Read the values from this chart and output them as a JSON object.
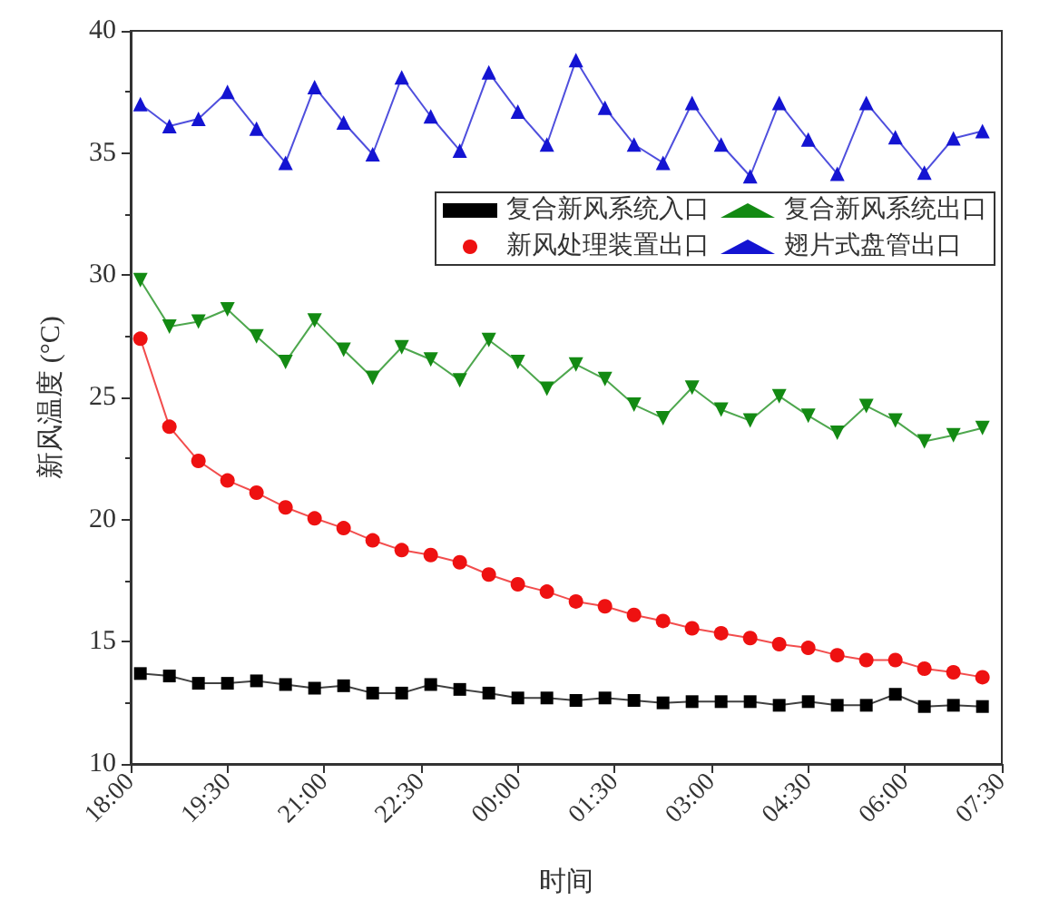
{
  "chart_data": {
    "type": "line",
    "xlabel": "时间",
    "ylabel": "新风温度 (°C)",
    "x": [
      "--01-01T18:09",
      "--01-01T18:36",
      "--01-01T19:03",
      "--01-01T19:30",
      "--01-01T19:57",
      "--01-01T20:24",
      "--01-01T20:51",
      "--01-01T21:18",
      "--01-01T21:45",
      "--01-01T22:12",
      "--01-01T22:39",
      "--01-01T23:06",
      "--01-01T23:33",
      "--01-02T00:00",
      "--01-02T00:27",
      "--01-02T00:54",
      "--01-02T01:21",
      "--01-02T01:48",
      "--01-02T02:15",
      "--01-02T02:42",
      "--01-02T03:09",
      "--01-02T03:36",
      "--01-02T04:03",
      "--01-02T04:30",
      "--01-02T04:57",
      "--01-02T05:24",
      "--01-02T05:51",
      "--01-02T06:18",
      "--01-02T06:45",
      "--01-02T07:12"
    ],
    "xlim": [
      "--01-01T18:00",
      "--01-02T07:30"
    ],
    "xticks": [
      {
        "value": "--01-01T18:00",
        "label": "18:00"
      },
      {
        "value": "--01-01T19:30",
        "label": "19:30"
      },
      {
        "value": "--01-01T21:00",
        "label": "21:00"
      },
      {
        "value": "--01-01T22:30",
        "label": "22:30"
      },
      {
        "value": "--01-02T00:00",
        "label": "00:00"
      },
      {
        "value": "--01-02T01:30",
        "label": "01:30"
      },
      {
        "value": "--01-02T03:00",
        "label": "03:00"
      },
      {
        "value": "--01-02T04:30",
        "label": "04:30"
      },
      {
        "value": "--01-02T06:00",
        "label": "06:00"
      },
      {
        "value": "--01-02T07:30",
        "label": "07:30"
      }
    ],
    "ylim": [
      10,
      40
    ],
    "yticks": [
      10,
      15,
      20,
      25,
      30,
      35,
      40
    ],
    "grid": false,
    "legend": "top right",
    "line_style": "solid",
    "series": [
      {
        "name": "复合新风系统入口",
        "color": "#000000",
        "marker": "square",
        "values": [
          13.7,
          13.6,
          13.3,
          13.3,
          13.4,
          13.25,
          13.1,
          13.2,
          12.9,
          12.9,
          13.25,
          13.05,
          12.9,
          12.7,
          12.7,
          12.6,
          12.7,
          12.6,
          12.5,
          12.55,
          12.55,
          12.55,
          12.4,
          12.55,
          12.4,
          12.4,
          12.85,
          12.35,
          12.4,
          12.35
        ]
      },
      {
        "name": "复合新风系统出口",
        "color": "#138a13",
        "marker": "triangle-down",
        "values": [
          29.8,
          27.9,
          28.1,
          28.6,
          27.5,
          26.45,
          28.15,
          26.95,
          25.8,
          27.05,
          26.55,
          25.7,
          27.35,
          26.45,
          25.35,
          26.35,
          25.75,
          24.7,
          24.15,
          25.4,
          24.5,
          24.05,
          25.05,
          24.25,
          23.55,
          24.65,
          24.05,
          23.2,
          23.45,
          23.75
        ]
      },
      {
        "name": "新风处理装置出口",
        "color": "#ee1111",
        "marker": "circle",
        "values": [
          27.4,
          23.8,
          22.4,
          21.6,
          21.1,
          20.5,
          20.05,
          19.65,
          19.15,
          18.75,
          18.55,
          18.25,
          17.75,
          17.35,
          17.05,
          16.65,
          16.45,
          16.1,
          15.85,
          15.55,
          15.35,
          15.15,
          14.9,
          14.75,
          14.45,
          14.25,
          14.25,
          13.9,
          13.75,
          13.55
        ]
      },
      {
        "name": "翅片式盘管出口",
        "color": "#1414d2",
        "marker": "triangle",
        "values": [
          37.0,
          36.1,
          36.4,
          37.5,
          36.0,
          34.6,
          37.7,
          36.25,
          34.95,
          38.1,
          36.5,
          35.1,
          38.3,
          36.7,
          35.35,
          38.8,
          36.85,
          35.35,
          34.6,
          37.05,
          35.35,
          34.05,
          37.05,
          35.55,
          34.15,
          37.05,
          35.65,
          34.2,
          35.6,
          35.9
        ]
      }
    ]
  }
}
